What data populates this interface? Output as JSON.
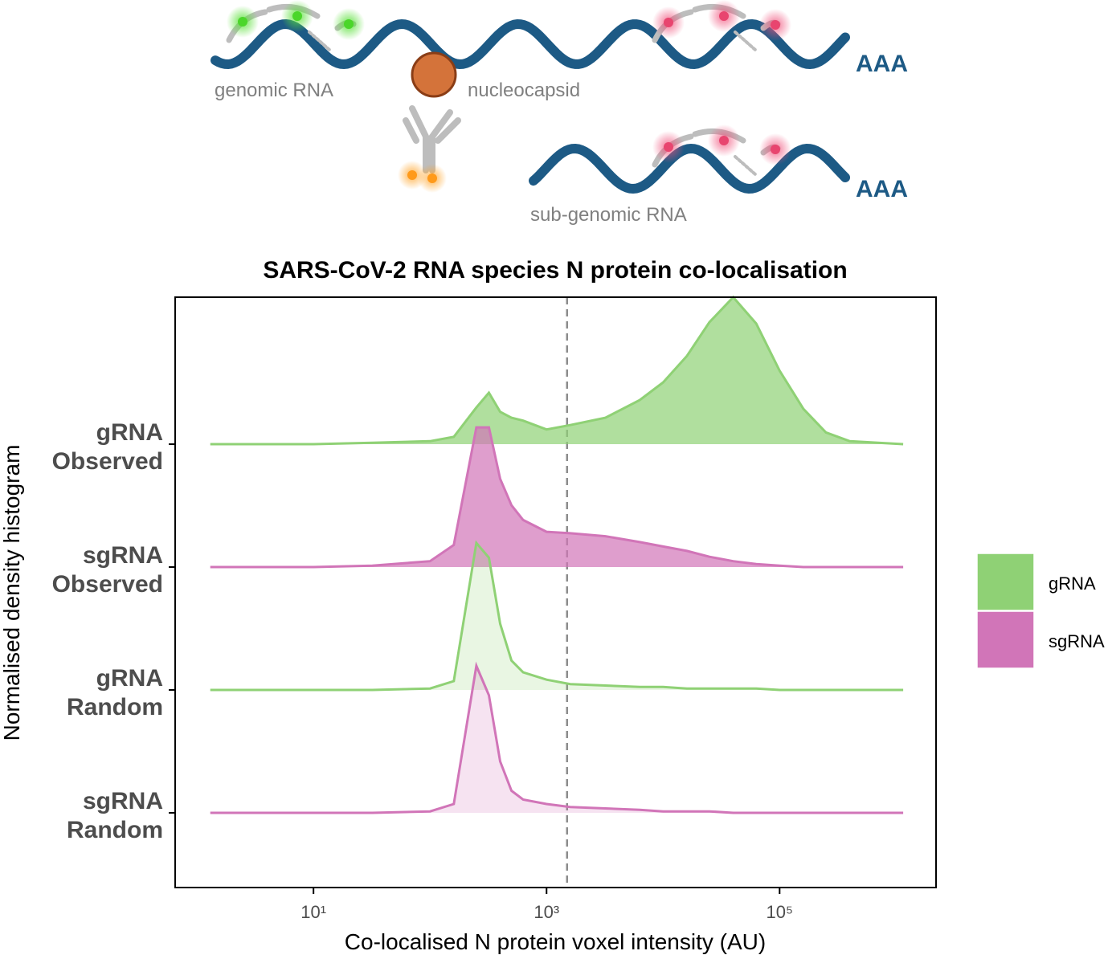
{
  "diagram": {
    "genomic_label": "genomic RNA",
    "nucleocapsid_label": "nucleocapsid",
    "subgenomic_label": "sub-genomic RNA",
    "polya_top": "AAA",
    "polya_bottom": "AAA"
  },
  "chart_data": {
    "type": "ridgeline",
    "title": "SARS-CoV-2 RNA species N protein co-localisation",
    "x_label": "Co-localised N protein voxel intensity (AU)",
    "y_label": "Normalised density histogram",
    "log_x": true,
    "xlim": [
      0.65,
      2200000
    ],
    "xticks": [
      {
        "value": 10,
        "label": "10¹"
      },
      {
        "value": 1000,
        "label": "10³"
      },
      {
        "value": 100000,
        "label": "10⁵"
      }
    ],
    "reference_line": 1500,
    "x": [
      1.3,
      10,
      32,
      100,
      160,
      250,
      320,
      400,
      500,
      630,
      1000,
      1600,
      3200,
      6300,
      10000,
      16000,
      25000,
      40000,
      63000,
      100000,
      160000,
      250000,
      400000,
      1150000
    ],
    "series": [
      {
        "name": "gRNA Observed",
        "color": "#8fd175",
        "fill_opacity": 0.7,
        "values": [
          0,
          0,
          0.01,
          0.02,
          0.05,
          0.25,
          0.35,
          0.22,
          0.18,
          0.16,
          0.1,
          0.13,
          0.18,
          0.3,
          0.42,
          0.6,
          0.83,
          1.0,
          0.82,
          0.5,
          0.24,
          0.08,
          0.02,
          0
        ]
      },
      {
        "name": "sgRNA Observed",
        "color": "#d175b8",
        "fill_opacity": 0.7,
        "values": [
          0,
          0,
          0.01,
          0.04,
          0.15,
          0.95,
          0.95,
          0.6,
          0.42,
          0.32,
          0.24,
          0.23,
          0.21,
          0.17,
          0.14,
          0.11,
          0.07,
          0.04,
          0.02,
          0.01,
          0,
          0,
          0,
          0
        ]
      },
      {
        "name": "gRNA Random",
        "color": "#8fd175",
        "fill_opacity": 0.2,
        "values": [
          0,
          0,
          0,
          0.01,
          0.06,
          1.0,
          0.9,
          0.45,
          0.2,
          0.12,
          0.07,
          0.04,
          0.03,
          0.02,
          0.02,
          0.01,
          0.01,
          0.01,
          0.01,
          0,
          0,
          0,
          0,
          0
        ]
      },
      {
        "name": "sgRNA Random",
        "color": "#d175b8",
        "fill_opacity": 0.2,
        "values": [
          0,
          0,
          0,
          0.01,
          0.06,
          1.0,
          0.8,
          0.35,
          0.15,
          0.09,
          0.06,
          0.04,
          0.03,
          0.02,
          0.01,
          0.01,
          0.01,
          0,
          0,
          0,
          0,
          0,
          0,
          0
        ]
      }
    ],
    "legend": [
      {
        "name": "gRNA",
        "color": "#8fd175"
      },
      {
        "name": "sgRNA",
        "color": "#d175b8"
      }
    ]
  }
}
